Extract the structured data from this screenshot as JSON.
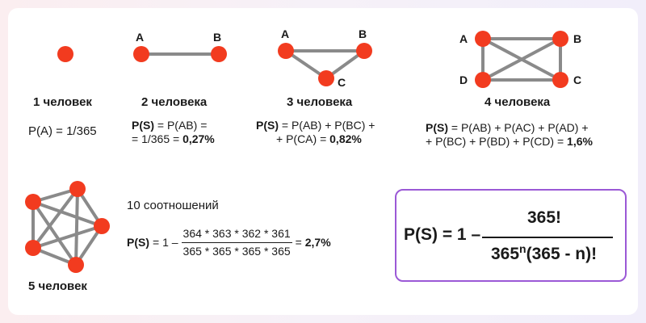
{
  "graphs": {
    "g1": {
      "caption": "1 человек",
      "formula": "P(A) = 1/365"
    },
    "g2": {
      "caption": "2 человека",
      "labels": [
        "A",
        "B"
      ],
      "formula_line1": "P(AB) =",
      "formula_line2_pre": "= 1/365 = ",
      "result": "0,27%"
    },
    "g3": {
      "caption": "3 человека",
      "labels": [
        "A",
        "B",
        "C"
      ],
      "formula_line1": "P(AB) +  P(BC) +",
      "formula_line2_pre": "+ P(CA) = ",
      "result": "0,82%"
    },
    "g4": {
      "caption": "4 человека",
      "labels": [
        "A",
        "B",
        "C",
        "D"
      ],
      "formula_line1": "P(AB) + P(AC) + P(AD) +",
      "formula_line2_pre": "+ P(BC) + P(BD) + P(CD) = ",
      "result": "1,6%"
    },
    "g5": {
      "caption": "5 человек",
      "relations": "10 соотношений",
      "numerator": "364 * 363 * 362 * 361",
      "denominator": "365 * 365 * 365 * 365",
      "prefix": "= 1 –",
      "result": "2,7%"
    }
  },
  "ps_label": "P(S)",
  "ps_eq": " = ",
  "general_formula": {
    "lhs": "P(S) = 1 –",
    "numerator": "365!",
    "den_base": "365",
    "den_exp": "n",
    "den_rest": "(365 - n)!"
  },
  "colors": {
    "node": "#f23b1f",
    "edge": "#8a8a8a",
    "box_border": "#9b59d6"
  }
}
